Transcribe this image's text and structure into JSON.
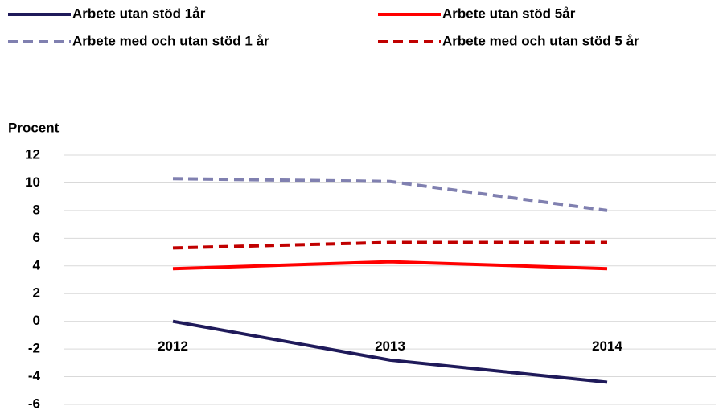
{
  "chart_data": {
    "type": "line",
    "y_label": "Procent",
    "categories": [
      "2012",
      "2013",
      "2014"
    ],
    "series": [
      {
        "name": "Arbete utan stöd 1år",
        "color": "#1f1a5a",
        "dashed": false,
        "values": [
          0,
          -2.8,
          -4.4
        ]
      },
      {
        "name": "Arbete utan stöd 5år",
        "color": "#ff0000",
        "dashed": false,
        "values": [
          3.8,
          4.3,
          3.8
        ]
      },
      {
        "name": "Arbete med och utan stöd 1 år",
        "color": "#8080b0",
        "dashed": true,
        "values": [
          10.3,
          10.1,
          8.0
        ]
      },
      {
        "name": "Arbete med och utan stöd 5 år",
        "color": "#c00000",
        "dashed": true,
        "values": [
          5.3,
          5.7,
          5.7
        ]
      }
    ],
    "ylim": [
      -6,
      12
    ],
    "yticks": [
      12,
      10,
      8,
      6,
      4,
      2,
      0,
      -2,
      -4,
      -6
    ],
    "grid": true
  }
}
